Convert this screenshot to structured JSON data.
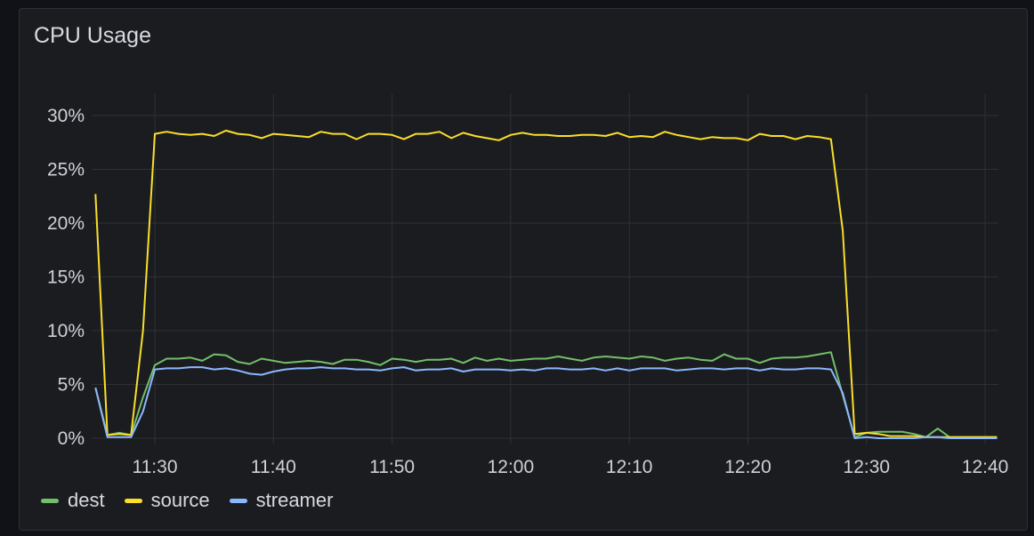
{
  "chart_data": {
    "type": "line",
    "title": "CPU Usage",
    "x_start": "11:25",
    "x_step_minutes": 1,
    "x_ticks": [
      "11:30",
      "11:40",
      "11:50",
      "12:00",
      "12:10",
      "12:20",
      "12:30",
      "12:40"
    ],
    "y_ticks": [
      "0%",
      "5%",
      "10%",
      "15%",
      "20%",
      "25%",
      "30%"
    ],
    "ylim": [
      0,
      30
    ],
    "grid": true,
    "legend_placement": "bottom-left",
    "series": [
      {
        "name": "dest",
        "color": "#73bf69",
        "values": [
          4.7,
          0.3,
          0.5,
          0.3,
          3.8,
          6.8,
          7.4,
          7.4,
          7.5,
          7.2,
          7.8,
          7.7,
          7.1,
          6.9,
          7.4,
          7.2,
          7.0,
          7.1,
          7.2,
          7.1,
          6.9,
          7.3,
          7.3,
          7.1,
          6.8,
          7.4,
          7.3,
          7.1,
          7.3,
          7.3,
          7.4,
          7.0,
          7.5,
          7.2,
          7.4,
          7.2,
          7.3,
          7.4,
          7.4,
          7.6,
          7.4,
          7.2,
          7.5,
          7.6,
          7.5,
          7.4,
          7.6,
          7.5,
          7.2,
          7.4,
          7.5,
          7.3,
          7.2,
          7.8,
          7.4,
          7.4,
          7.0,
          7.4,
          7.5,
          7.5,
          7.6,
          7.8,
          8.0,
          4.0,
          0.1,
          0.5,
          0.6,
          0.6,
          0.6,
          0.4,
          0.1,
          0.9,
          0.1,
          0.1,
          0.1,
          0.1,
          0.1
        ]
      },
      {
        "name": "source",
        "color": "#fade2a",
        "values": [
          22.7,
          0.3,
          0.4,
          0.3,
          10.0,
          28.3,
          28.5,
          28.3,
          28.2,
          28.3,
          28.1,
          28.6,
          28.3,
          28.2,
          27.9,
          28.3,
          28.2,
          28.1,
          28.0,
          28.5,
          28.3,
          28.3,
          27.8,
          28.3,
          28.3,
          28.2,
          27.8,
          28.3,
          28.3,
          28.5,
          27.9,
          28.4,
          28.1,
          27.9,
          27.7,
          28.2,
          28.4,
          28.2,
          28.2,
          28.1,
          28.1,
          28.2,
          28.2,
          28.1,
          28.4,
          28.0,
          28.1,
          28.0,
          28.5,
          28.2,
          28.0,
          27.8,
          28.0,
          27.9,
          27.9,
          27.7,
          28.3,
          28.1,
          28.1,
          27.8,
          28.1,
          28.0,
          27.8,
          19.3,
          0.4,
          0.5,
          0.4,
          0.2,
          0.2,
          0.2,
          0.1,
          0.1,
          0.1,
          0.1,
          0.1,
          0.1,
          0.1
        ]
      },
      {
        "name": "streamer",
        "color": "#8ab8ff",
        "values": [
          4.7,
          0.1,
          0.1,
          0.1,
          2.5,
          6.4,
          6.5,
          6.5,
          6.6,
          6.6,
          6.4,
          6.5,
          6.3,
          6.0,
          5.9,
          6.2,
          6.4,
          6.5,
          6.5,
          6.6,
          6.5,
          6.5,
          6.4,
          6.4,
          6.3,
          6.5,
          6.6,
          6.3,
          6.4,
          6.4,
          6.5,
          6.2,
          6.4,
          6.4,
          6.4,
          6.3,
          6.4,
          6.3,
          6.5,
          6.5,
          6.4,
          6.4,
          6.5,
          6.3,
          6.5,
          6.3,
          6.5,
          6.5,
          6.5,
          6.3,
          6.4,
          6.5,
          6.5,
          6.4,
          6.5,
          6.5,
          6.3,
          6.5,
          6.4,
          6.4,
          6.5,
          6.5,
          6.4,
          4.2,
          0.0,
          0.1,
          0.0,
          0.0,
          0.0,
          0.0,
          0.1,
          0.1,
          0.0,
          0.0,
          0.0,
          0.0,
          0.0
        ]
      }
    ]
  }
}
